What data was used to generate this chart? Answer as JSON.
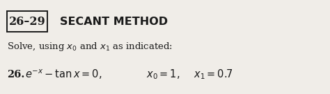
{
  "box_label": "26–29",
  "section_title": "SECANT METHOD",
  "subtitle": "Solve, using $x_0$ and $x_1$ as indicated:",
  "problem_number": "26.",
  "equation": "$e^{-x} - \\mathrm{tan}\\, x = 0,$",
  "x0_label": "$x_0 = 1,$",
  "x1_label": "$x_1 = 0.7$",
  "bg_color": "#f0ede8",
  "text_color": "#1a1a1a",
  "box_color": "#1a1a1a",
  "title_fontsize": 11.5,
  "subtitle_fontsize": 9.5,
  "problem_fontsize": 10.5,
  "fig_width": 4.74,
  "fig_height": 1.36,
  "dpi": 100
}
